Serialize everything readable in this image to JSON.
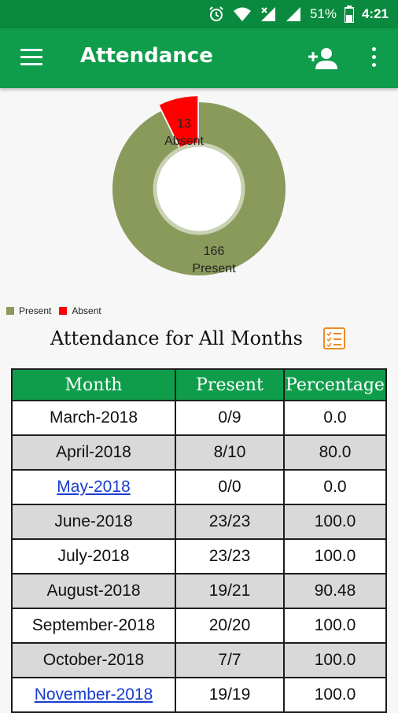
{
  "status_bar": {
    "battery": "51%",
    "time": "4:21",
    "icons": [
      "alarm-icon",
      "wifi-icon",
      "signal-icon",
      "signal-icon-2",
      "battery-icon"
    ]
  },
  "app_bar": {
    "title": "Attendance",
    "icons": [
      "menu-icon",
      "add-user-icon",
      "more-vert-icon"
    ]
  },
  "donut": {
    "present_count": "166",
    "present_label": "Present",
    "absent_count": "13",
    "absent_label": "Absent",
    "present_value": 166,
    "absent_value": 13,
    "present_color": "#8a9a5b",
    "absent_color": "#ff0000"
  },
  "legend": {
    "present": "Present",
    "absent": "Absent"
  },
  "section": {
    "heading": "Attendance for All Months",
    "icon": "checklist-icon"
  },
  "table": {
    "headers": [
      "Month",
      "Present",
      "Percentage"
    ],
    "rows": [
      {
        "month": "March-2018",
        "present": "0/9",
        "percentage": "0.0"
      },
      {
        "month": "April-2018",
        "present": "8/10",
        "percentage": "80.0"
      },
      {
        "month": "May-2018",
        "present": "0/0",
        "percentage": "0.0"
      },
      {
        "month": "June-2018",
        "present": "23/23",
        "percentage": "100.0"
      },
      {
        "month": "July-2018",
        "present": "23/23",
        "percentage": "100.0"
      },
      {
        "month": "August-2018",
        "present": "19/21",
        "percentage": "90.48"
      },
      {
        "month": "September-2018",
        "present": "20/20",
        "percentage": "100.0"
      },
      {
        "month": "October-2018",
        "present": "7/7",
        "percentage": "100.0"
      },
      {
        "month": "November-2018",
        "present": "19/19",
        "percentage": "100.0"
      }
    ]
  }
}
